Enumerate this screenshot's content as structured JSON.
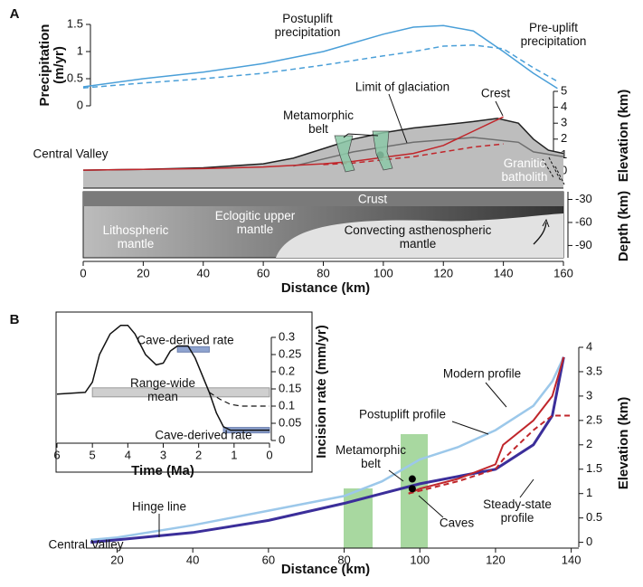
{
  "panel_labels": [
    "A",
    "B"
  ],
  "chart_data": [
    {
      "type": "line",
      "ylabel": "Precipitation (m/yr)",
      "xlim": [
        0,
        160
      ],
      "ylim": [
        0,
        1.5
      ],
      "yticks": [
        0,
        0.5,
        1,
        1.5
      ],
      "series": [
        {
          "name": "Postuplift precipitation",
          "color": "#4a9fd8",
          "dash": false,
          "x": [
            0,
            20,
            40,
            60,
            80,
            100,
            110,
            120,
            130,
            140,
            150,
            158
          ],
          "values": [
            0.35,
            0.5,
            0.62,
            0.78,
            1.0,
            1.32,
            1.45,
            1.48,
            1.38,
            1.0,
            0.6,
            0.32
          ]
        },
        {
          "name": "Pre-uplift precipitation",
          "color": "#4a9fd8",
          "dash": true,
          "x": [
            0,
            20,
            40,
            60,
            80,
            100,
            110,
            120,
            130,
            140,
            150,
            158
          ],
          "values": [
            0.33,
            0.42,
            0.5,
            0.6,
            0.75,
            0.92,
            1.0,
            1.1,
            1.12,
            1.05,
            0.7,
            0.45
          ]
        }
      ]
    },
    {
      "type": "line",
      "ylabel": "Elevation (km)",
      "xlim": [
        0,
        160
      ],
      "ylim": [
        0,
        5
      ],
      "yticks": [
        0,
        1,
        2,
        3,
        4,
        5
      ],
      "series": [
        {
          "color": "#222222",
          "fill": "#bdbdbd",
          "dash": false,
          "x": [
            0,
            20,
            40,
            60,
            70,
            80,
            90,
            100,
            110,
            120,
            130,
            138,
            145,
            150,
            155,
            160
          ],
          "values": [
            0.05,
            0.1,
            0.2,
            0.45,
            0.8,
            1.4,
            2.0,
            2.4,
            2.7,
            2.9,
            3.1,
            3.3,
            3.0,
            2.0,
            1.3,
            1.1
          ]
        },
        {
          "color": "#6e6e6e",
          "dash": false,
          "x": [
            70,
            90,
            110,
            130,
            145,
            150,
            160
          ],
          "values": [
            0.3,
            1.2,
            1.8,
            2.1,
            1.8,
            1.2,
            0.9
          ]
        },
        {
          "color": "#c0262b",
          "dash": false,
          "x": [
            0,
            20,
            40,
            60,
            80,
            90,
            100,
            110,
            120,
            130,
            140
          ],
          "values": [
            0.05,
            0.1,
            0.15,
            0.25,
            0.45,
            0.6,
            0.85,
            1.1,
            1.6,
            2.5,
            3.4
          ]
        },
        {
          "color": "#c0262b",
          "dash": true,
          "x": [
            80,
            90,
            100,
            110,
            120,
            130,
            140
          ],
          "values": [
            0.4,
            0.5,
            0.7,
            0.9,
            1.2,
            1.5,
            1.7
          ]
        }
      ],
      "markers": {
        "x": [
          99
        ],
        "values": [
          1.0
        ]
      },
      "annotations": [
        "Limit of glaciation",
        "Crest",
        "Metamorphic belt",
        "Central Valley",
        "Granitic batholith"
      ]
    },
    {
      "type": "section",
      "xlabel": "Distance (km)",
      "ylabel": "Depth (km)",
      "xlim": [
        0,
        160
      ],
      "ylim": [
        -106,
        -20
      ],
      "xticks": [
        0,
        20,
        40,
        60,
        80,
        100,
        120,
        140,
        160
      ],
      "yticks": [
        -30,
        -60,
        -90
      ],
      "annotations": [
        "Crust",
        "Lithospheric mantle",
        "Eclogitic upper mantle",
        "Convecting asthenospheric mantle"
      ]
    },
    {
      "type": "line",
      "xlabel": "Distance (km)",
      "ylabel": "Elevation (km)",
      "xlim": [
        12,
        142
      ],
      "ylim": [
        -0.1,
        4
      ],
      "xticks": [
        20,
        40,
        60,
        80,
        100,
        120,
        140
      ],
      "yticks": [
        0,
        0.5,
        1,
        1.5,
        2,
        2.5,
        3,
        3.5,
        4
      ],
      "series": [
        {
          "color": "#9cc8ea",
          "dash": false,
          "width": 2.5,
          "x": [
            13,
            20,
            40,
            60,
            80,
            90,
            100,
            110,
            120,
            130,
            135,
            138
          ],
          "values": [
            0.05,
            0.1,
            0.35,
            0.65,
            0.95,
            1.25,
            1.7,
            1.95,
            2.3,
            2.8,
            3.3,
            3.8
          ],
          "name": "Postuplift profile"
        },
        {
          "color": "#3b2e9a",
          "dash": false,
          "width": 3,
          "x": [
            13,
            20,
            40,
            60,
            80,
            90,
            100,
            110,
            120,
            130,
            135,
            138
          ],
          "values": [
            0,
            0.05,
            0.2,
            0.45,
            0.8,
            1.0,
            1.2,
            1.35,
            1.5,
            2.0,
            2.6,
            3.8
          ]
        },
        {
          "color": "#c0262b",
          "dash": false,
          "width": 2,
          "x": [
            97,
            100,
            110,
            120,
            122,
            130,
            135,
            138
          ],
          "values": [
            1.0,
            1.1,
            1.3,
            1.6,
            2.0,
            2.5,
            3.0,
            3.8
          ],
          "name": "Modern profile"
        },
        {
          "color": "#c0262b",
          "dash": true,
          "width": 2,
          "x": [
            97,
            110,
            120,
            122,
            130,
            135,
            140
          ],
          "values": [
            1.0,
            1.25,
            1.5,
            1.7,
            2.3,
            2.6,
            2.6
          ],
          "name": "Steady-state profile"
        }
      ],
      "markers": {
        "x": [
          98,
          98
        ],
        "values": [
          1.3,
          1.1
        ]
      },
      "annotations": [
        "Metamorphic belt",
        "Caves",
        "Hinge line",
        "Central Valley"
      ]
    },
    {
      "type": "line",
      "xlabel": "Time (Ma)",
      "ylabel": "Incision rate (mm/yr)",
      "xlim": [
        6,
        0
      ],
      "ylim": [
        0,
        0.3
      ],
      "xticks": [
        6,
        5,
        4,
        3,
        2,
        1,
        0
      ],
      "yticks": [
        0,
        0.05,
        0.1,
        0.15,
        0.2,
        0.25,
        0.3
      ],
      "series": [
        {
          "color": "#111111",
          "dash": false,
          "width": 1.5,
          "x": [
            6,
            5.2,
            5,
            4.8,
            4.5,
            4.2,
            4,
            3.8,
            3.5,
            3.2,
            3,
            2.8,
            2.6,
            2.3,
            2.1,
            1.9,
            1.7,
            1.5,
            1.3,
            1.1,
            0.9,
            0
          ],
          "values": [
            0.135,
            0.14,
            0.17,
            0.25,
            0.31,
            0.335,
            0.335,
            0.31,
            0.25,
            0.22,
            0.225,
            0.26,
            0.275,
            0.275,
            0.24,
            0.19,
            0.14,
            0.08,
            0.04,
            0.03,
            0.03,
            0.03
          ]
        },
        {
          "color": "#111111",
          "dash": true,
          "width": 1.2,
          "x": [
            1.7,
            1.4,
            1.1,
            0.8,
            0.5,
            0
          ],
          "values": [
            0.14,
            0.12,
            0.105,
            0.1,
            0.1,
            0.1
          ]
        }
      ],
      "mean": {
        "x": [
          5,
          0
        ],
        "value": 0.14
      },
      "cave_rates": [
        {
          "x": [
            2.6,
            1.7
          ],
          "value": 0.265
        },
        {
          "x": [
            1.3,
            0
          ],
          "value": 0.03
        }
      ],
      "annotations": [
        "Cave-derived rate",
        "Range-wide mean",
        "Cave-derived rate"
      ]
    }
  ]
}
